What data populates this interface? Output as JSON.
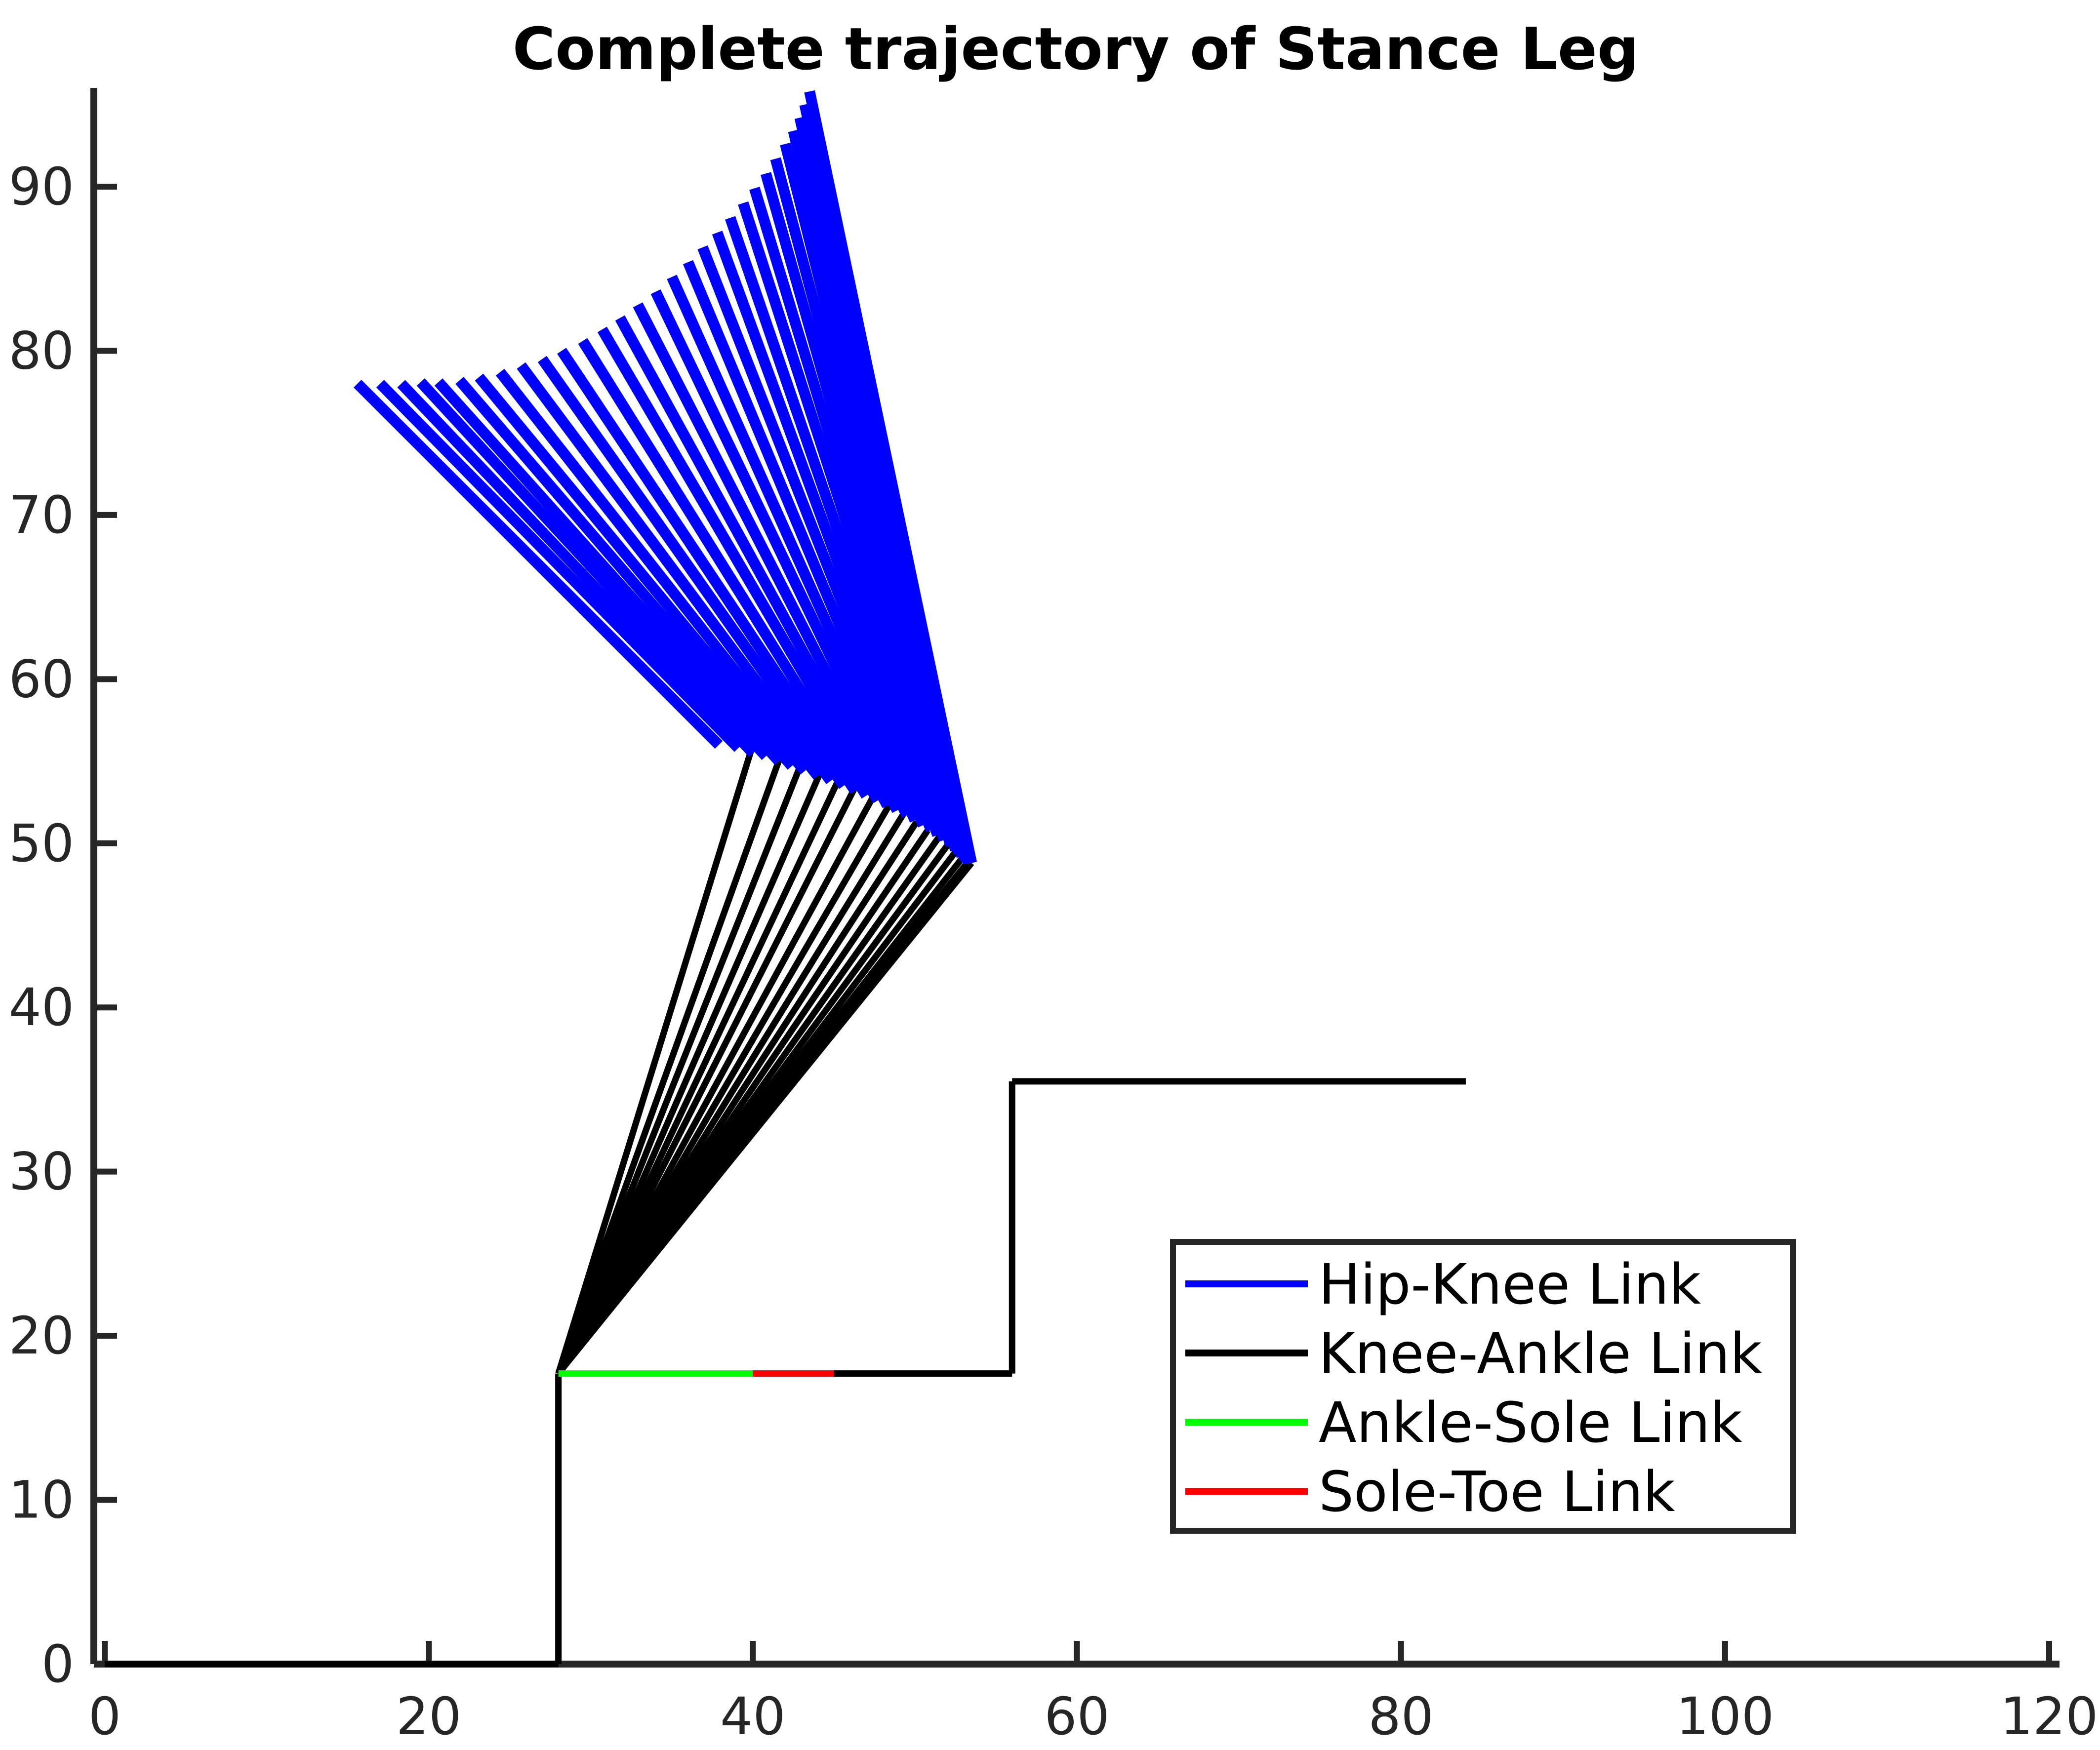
{
  "chart_data": {
    "type": "line",
    "title": "Complete trajectory of Stance Leg",
    "xlabel": "",
    "ylabel": "",
    "xlim": [
      -0.5,
      120
    ],
    "ylim": [
      -0.3,
      96
    ],
    "x_ticks": [
      0,
      20,
      40,
      60,
      80,
      100,
      120
    ],
    "y_ticks": [
      0,
      10,
      20,
      30,
      40,
      50,
      60,
      70,
      80,
      90
    ],
    "grid": false,
    "legend_position": "lower-right",
    "series": [
      {
        "name": "Hip-Knee Link",
        "color": "#0000ff",
        "segments": [
          [
            [
              15.6,
              78.0
            ],
            [
              37.9,
              56.0
            ]
          ],
          [
            [
              17.0,
              78.0
            ],
            [
              39.1,
              55.8
            ]
          ],
          [
            [
              18.3,
              78.0
            ],
            [
              40.0,
              55.5
            ]
          ],
          [
            [
              19.5,
              78.1
            ],
            [
              40.8,
              55.3
            ]
          ],
          [
            [
              20.6,
              78.1
            ],
            [
              41.6,
              55.0
            ]
          ],
          [
            [
              21.9,
              78.2
            ],
            [
              42.4,
              54.7
            ]
          ],
          [
            [
              23.1,
              78.4
            ],
            [
              43.2,
              54.4
            ]
          ],
          [
            [
              24.4,
              78.7
            ],
            [
              44.0,
              54.1
            ]
          ],
          [
            [
              25.7,
              79.1
            ],
            [
              44.8,
              53.8
            ]
          ],
          [
            [
              27.0,
              79.5
            ],
            [
              45.6,
              53.5
            ]
          ],
          [
            [
              28.2,
              80.0
            ],
            [
              46.3,
              53.2
            ]
          ],
          [
            [
              29.5,
              80.6
            ],
            [
              47.0,
              52.9
            ]
          ],
          [
            [
              30.7,
              81.3
            ],
            [
              47.7,
              52.6
            ]
          ],
          [
            [
              31.8,
              82.0
            ],
            [
              48.3,
              52.3
            ]
          ],
          [
            [
              32.9,
              82.8
            ],
            [
              48.9,
              52.0
            ]
          ],
          [
            [
              34.0,
              83.6
            ],
            [
              49.5,
              51.7
            ]
          ],
          [
            [
              35.0,
              84.5
            ],
            [
              50.0,
              51.4
            ]
          ],
          [
            [
              36.0,
              85.4
            ],
            [
              50.5,
              51.1
            ]
          ],
          [
            [
              36.9,
              86.3
            ],
            [
              51.0,
              50.8
            ]
          ],
          [
            [
              37.8,
              87.2
            ],
            [
              51.4,
              50.5
            ]
          ],
          [
            [
              38.6,
              88.1
            ],
            [
              51.8,
              50.2
            ]
          ],
          [
            [
              39.4,
              89.0
            ],
            [
              52.2,
              49.9
            ]
          ],
          [
            [
              40.1,
              89.9
            ],
            [
              52.5,
              49.6
            ]
          ],
          [
            [
              40.8,
              90.8
            ],
            [
              52.7,
              49.4
            ]
          ],
          [
            [
              41.4,
              91.7
            ],
            [
              52.9,
              49.2
            ]
          ],
          [
            [
              42.0,
              92.6
            ],
            [
              53.1,
              49.0
            ]
          ],
          [
            [
              42.5,
              93.4
            ],
            [
              53.2,
              48.9
            ]
          ],
          [
            [
              42.9,
              94.2
            ],
            [
              53.3,
              48.8
            ]
          ],
          [
            [
              43.2,
              95.0
            ],
            [
              53.4,
              48.8
            ]
          ],
          [
            [
              43.5,
              95.8
            ],
            [
              53.5,
              48.8
            ]
          ]
        ]
      },
      {
        "name": "Knee-Ankle Link",
        "color": "#000000",
        "segments": [
          [
            [
              28.0,
              17.7
            ],
            [
              40.0,
              56.0
            ]
          ],
          [
            [
              28.0,
              17.7
            ],
            [
              41.7,
              55.3
            ]
          ],
          [
            [
              28.0,
              17.7
            ],
            [
              43.0,
              54.9
            ]
          ],
          [
            [
              28.0,
              17.7
            ],
            [
              44.2,
              54.4
            ]
          ],
          [
            [
              28.0,
              17.7
            ],
            [
              45.3,
              53.9
            ]
          ],
          [
            [
              28.0,
              17.7
            ],
            [
              46.3,
              53.4
            ]
          ],
          [
            [
              28.0,
              17.7
            ],
            [
              47.4,
              52.8
            ]
          ],
          [
            [
              28.0,
              17.7
            ],
            [
              48.4,
              52.3
            ]
          ],
          [
            [
              28.0,
              17.7
            ],
            [
              49.3,
              51.8
            ]
          ],
          [
            [
              28.0,
              17.7
            ],
            [
              50.1,
              51.3
            ]
          ],
          [
            [
              28.0,
              17.7
            ],
            [
              50.8,
              50.8
            ]
          ],
          [
            [
              28.0,
              17.7
            ],
            [
              51.5,
              50.4
            ]
          ],
          [
            [
              28.0,
              17.7
            ],
            [
              52.1,
              50.0
            ]
          ],
          [
            [
              28.0,
              17.7
            ],
            [
              52.6,
              49.6
            ]
          ],
          [
            [
              28.0,
              17.7
            ],
            [
              53.0,
              49.2
            ]
          ],
          [
            [
              28.0,
              17.7
            ],
            [
              53.3,
              48.9
            ]
          ],
          [
            [
              28.0,
              17.7
            ],
            [
              53.5,
              48.8
            ]
          ]
        ]
      },
      {
        "name": "Ankle-Sole Link",
        "color": "#00ff00",
        "segments": [
          [
            [
              28.0,
              17.7
            ],
            [
              40.0,
              17.7
            ]
          ]
        ]
      },
      {
        "name": "Sole-Toe Link",
        "color": "#ff0000",
        "segments": [
          [
            [
              40.0,
              17.7
            ],
            [
              45.0,
              17.7
            ]
          ]
        ]
      },
      {
        "color": "#000000",
        "segments": [
          [
            [
              0,
              0
            ],
            [
              28,
              0
            ]
          ],
          [
            [
              28,
              0
            ],
            [
              28,
              17.7
            ]
          ],
          [
            [
              45.0,
              17.7
            ],
            [
              56,
              17.7
            ]
          ],
          [
            [
              56,
              17.7
            ],
            [
              56,
              35.5
            ]
          ],
          [
            [
              56,
              35.5
            ],
            [
              84,
              35.5
            ]
          ]
        ]
      }
    ]
  }
}
